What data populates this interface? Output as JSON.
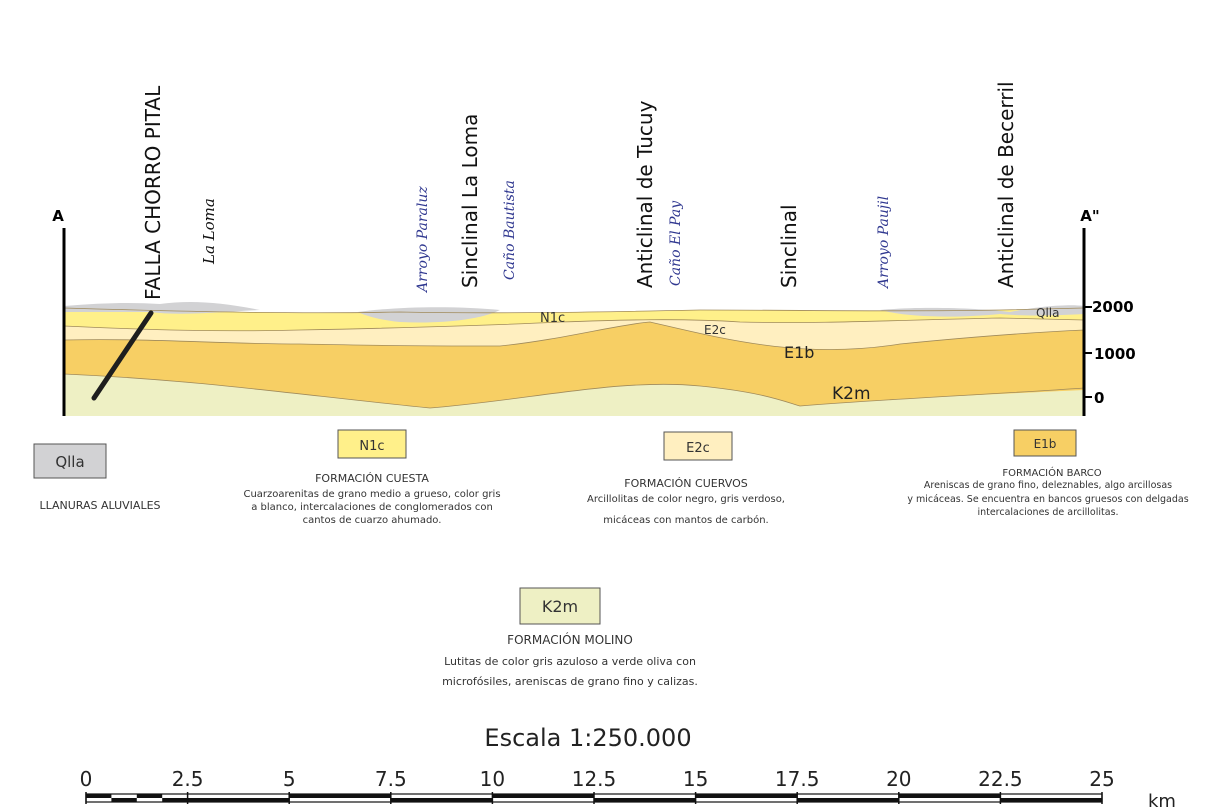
{
  "section": {
    "left_end": "A",
    "right_end": "A\"",
    "elevations": [
      "2000",
      "1000",
      "0"
    ],
    "fault": "FALLA CHORRO PITAL",
    "structures": [
      {
        "id": "sinclinal-la-loma",
        "text": "Sinclinal La Loma"
      },
      {
        "id": "anticlinal-tucuy",
        "text": "Anticlinal de Tucuy"
      },
      {
        "id": "sinclinal",
        "text": "Sinclinal"
      },
      {
        "id": "anticlinal-becerril",
        "text": "Anticlinal de Becerril"
      }
    ],
    "places": [
      {
        "id": "la-loma",
        "text": "La Loma"
      },
      {
        "id": "arroyo-paraluz",
        "text": "Arroyo Paraluz"
      },
      {
        "id": "cano-bautista",
        "text": "Caño Bautista"
      },
      {
        "id": "cano-el-pay",
        "text": "Caño El Pay"
      },
      {
        "id": "arroyo-paujil",
        "text": "Arroyo Paujil"
      }
    ],
    "unit_labels": {
      "n1c": "N1c",
      "e2c": "E2c",
      "e1b": "E1b",
      "k2m": "K2m",
      "qlla": "Qlla"
    }
  },
  "legend": {
    "qlla": {
      "code": "Qlla",
      "name": "LLANURAS ALUVIALES",
      "color": "#d2d2d4"
    },
    "n1c": {
      "code": "N1c",
      "name": "FORMACIÓN CUESTA",
      "color": "#fff08a",
      "desc": [
        "Cuarzoarenitas de grano medio a grueso, color gris",
        "a blanco, intercalaciones de conglomerados con",
        "cantos de cuarzo ahumado."
      ]
    },
    "e2c": {
      "code": "E2c",
      "name": "FORMACIÓN CUERVOS",
      "color": "#ffefc0",
      "desc": [
        "Arcillolitas de color negro, gris verdoso,",
        "micáceas con mantos de carbón."
      ]
    },
    "e1b": {
      "code": "E1b",
      "name": "FORMACIÓN BARCO",
      "color": "#f7cf64",
      "desc": [
        "Areniscas de grano fino, deleznables, algo arcillosas",
        "y micáceas. Se encuentra en bancos gruesos con delgadas",
        "intercalaciones de arcillolitas."
      ]
    },
    "k2m": {
      "code": "K2m",
      "name": "FORMACIÓN MOLINO",
      "color": "#eef0c4",
      "desc": [
        "Lutitas de color gris azuloso a verde oliva con",
        "microfósiles, areniscas de grano fino y calizas."
      ]
    }
  },
  "scale": {
    "title": "Escala 1:250.000",
    "ticks": [
      "0",
      "2.5",
      "5",
      "7.5",
      "10",
      "12.5",
      "15",
      "17.5",
      "20",
      "22.5",
      "25"
    ],
    "unit": "km"
  }
}
